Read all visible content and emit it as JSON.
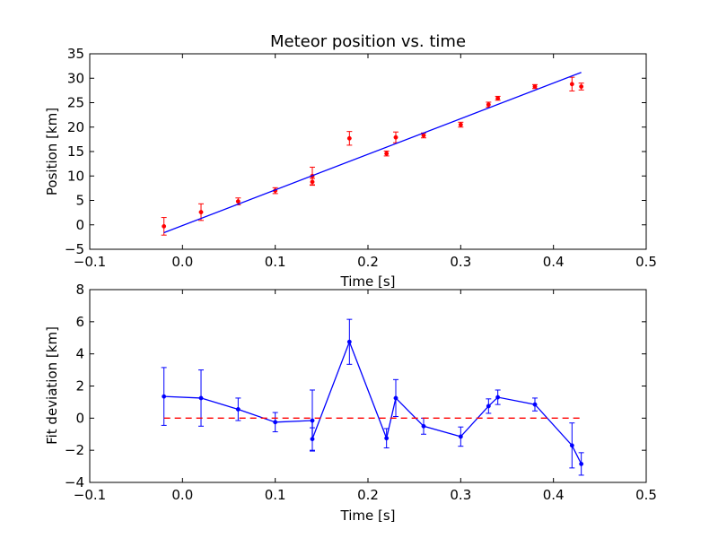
{
  "chart_data": [
    {
      "type": "scatter",
      "title": "Meteor position vs. time",
      "xlabel": "Time [s]",
      "ylabel": "Position [km]",
      "xlim": [
        -0.1,
        0.5
      ],
      "ylim": [
        -5,
        35
      ],
      "xticks": [
        "−0.1",
        "0.0",
        "0.1",
        "0.2",
        "0.3",
        "0.4",
        "0.5"
      ],
      "yticks": [
        "−5",
        "0",
        "5",
        "10",
        "15",
        "20",
        "25",
        "30",
        "35"
      ],
      "grid": false,
      "series": [
        {
          "kind": "errorbar-points",
          "color": "#ff0000",
          "x": [
            -0.02,
            0.02,
            0.06,
            0.1,
            0.14,
            0.14,
            0.18,
            0.22,
            0.23,
            0.26,
            0.3,
            0.33,
            0.34,
            0.38,
            0.42,
            0.43
          ],
          "y": [
            -0.3,
            2.6,
            4.8,
            7.0,
            8.8,
            10.0,
            17.7,
            14.6,
            17.9,
            18.3,
            20.5,
            24.6,
            25.9,
            28.3,
            28.8,
            28.3
          ],
          "yerr": [
            1.8,
            1.7,
            0.7,
            0.6,
            0.7,
            1.8,
            1.4,
            0.5,
            1.1,
            0.5,
            0.5,
            0.5,
            0.4,
            0.4,
            1.4,
            0.7
          ]
        },
        {
          "kind": "fit-line",
          "color": "#0000ff",
          "x": [
            -0.02,
            0.43
          ],
          "y": [
            -1.6,
            31.2
          ]
        }
      ]
    },
    {
      "type": "line",
      "title": "",
      "xlabel": "Time [s]",
      "ylabel": "Fit deviation [km]",
      "xlim": [
        -0.1,
        0.5
      ],
      "ylim": [
        -4,
        8
      ],
      "xticks": [
        "−0.1",
        "0.0",
        "0.1",
        "0.2",
        "0.3",
        "0.4",
        "0.5"
      ],
      "yticks": [
        "−4",
        "−2",
        "0",
        "2",
        "4",
        "6",
        "8"
      ],
      "grid": false,
      "series": [
        {
          "kind": "errorbar-line",
          "color": "#0000ff",
          "x": [
            -0.02,
            0.02,
            0.06,
            0.1,
            0.14,
            0.14,
            0.18,
            0.22,
            0.23,
            0.26,
            0.3,
            0.33,
            0.34,
            0.38,
            0.42,
            0.43
          ],
          "y": [
            1.35,
            1.25,
            0.55,
            -0.25,
            -0.15,
            -1.3,
            4.75,
            -1.25,
            1.25,
            -0.5,
            -1.15,
            0.75,
            1.3,
            0.85,
            -1.7,
            -2.85
          ],
          "yerr": [
            1.8,
            1.75,
            0.7,
            0.6,
            1.9,
            0.7,
            1.4,
            0.6,
            1.15,
            0.5,
            0.6,
            0.45,
            0.45,
            0.4,
            1.4,
            0.7
          ]
        },
        {
          "kind": "zero-line",
          "color": "#ff0000",
          "style": "dashed",
          "x": [
            -0.02,
            0.43
          ],
          "y": [
            0,
            0
          ]
        }
      ]
    }
  ]
}
